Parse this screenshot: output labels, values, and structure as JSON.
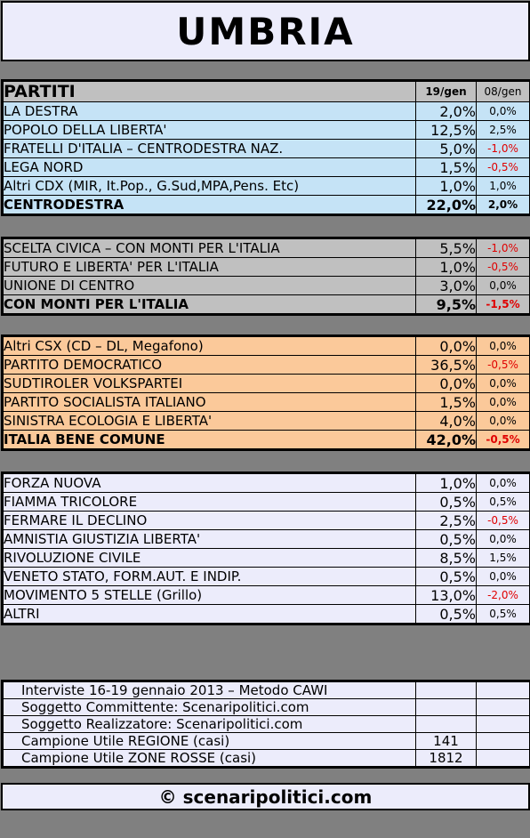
{
  "title": "UMBRIA",
  "header": {
    "col_party": "PARTITI",
    "col_current": "19/gen",
    "col_previous": "08/gen"
  },
  "groups": [
    {
      "rows": [
        {
          "name": "LA DESTRA",
          "value": "2,0%",
          "change": "0,0%"
        },
        {
          "name": "POPOLO DELLA LIBERTA'",
          "value": "12,5%",
          "change": "2,5%"
        },
        {
          "name": "FRATELLI D'ITALIA – CENTRODESTRA NAZ.",
          "value": "5,0%",
          "change": "-1,0%"
        },
        {
          "name": "LEGA NORD",
          "value": "1,5%",
          "change": "-0,5%"
        },
        {
          "name": "Altri CDX (MIR, It.Pop., G.Sud,MPA,Pens. Etc)",
          "value": "1,0%",
          "change": "1,0%"
        }
      ],
      "total": {
        "name": "CENTRODESTRA",
        "value": "22,0%",
        "change": "2,0%"
      }
    },
    {
      "rows": [
        {
          "name": "SCELTA CIVICA – CON MONTI PER L'ITALIA",
          "value": "5,5%",
          "change": "-1,0%"
        },
        {
          "name": "FUTURO E LIBERTA' PER L'ITALIA",
          "value": "1,0%",
          "change": "-0,5%"
        },
        {
          "name": "UNIONE DI CENTRO",
          "value": "3,0%",
          "change": "0,0%"
        }
      ],
      "total": {
        "name": "CON MONTI PER L'ITALIA",
        "value": "9,5%",
        "change": "-1,5%"
      }
    },
    {
      "rows": [
        {
          "name": "Altri CSX (CD – DL, Megafono)",
          "value": "0,0%",
          "change": "0,0%"
        },
        {
          "name": "PARTITO DEMOCRATICO",
          "value": "36,5%",
          "change": "-0,5%"
        },
        {
          "name": "SUDTIROLER VOLKSPARTEI",
          "value": "0,0%",
          "change": "0,0%"
        },
        {
          "name": "PARTITO SOCIALISTA ITALIANO",
          "value": "1,5%",
          "change": "0,0%"
        },
        {
          "name": "SINISTRA ECOLOGIA E LIBERTA'",
          "value": "4,0%",
          "change": "0,0%"
        }
      ],
      "total": {
        "name": "ITALIA BENE COMUNE",
        "value": "42,0%",
        "change": "-0,5%"
      }
    },
    {
      "rows": [
        {
          "name": "FORZA NUOVA",
          "value": "1,0%",
          "change": "0,0%"
        },
        {
          "name": "FIAMMA TRICOLORE",
          "value": "0,5%",
          "change": "0,5%"
        },
        {
          "name": "FERMARE IL DECLINO",
          "value": "2,5%",
          "change": "-0,5%"
        },
        {
          "name": "AMNISTIA GIUSTIZIA LIBERTA'",
          "value": "0,5%",
          "change": "0,0%"
        },
        {
          "name": "RIVOLUZIONE CIVILE",
          "value": "8,5%",
          "change": "1,5%"
        },
        {
          "name": "VENETO STATO, FORM.AUT. E INDIP.",
          "value": "0,5%",
          "change": "0,0%"
        },
        {
          "name": "MOVIMENTO 5 STELLE (Grillo)",
          "value": "13,0%",
          "change": "-2,0%"
        },
        {
          "name": "ALTRI",
          "value": "0,5%",
          "change": "0,5%"
        }
      ]
    }
  ],
  "footer": [
    {
      "label": "Interviste 16-19 gennaio 2013 – Metodo CAWI",
      "value": ""
    },
    {
      "label": "Soggetto Committente: Scenaripolitici.com",
      "value": ""
    },
    {
      "label": "Soggetto Realizzatore: Scenaripolitici.com",
      "value": ""
    },
    {
      "label": "Campione Utile REGIONE (casi)",
      "value": "141"
    },
    {
      "label": "Campione Utile ZONE ROSSE (casi)",
      "value": "1812"
    }
  ],
  "copyright": "© scenaripolitici.com",
  "colors": {
    "background": "#808080",
    "centrodestra": "#c5e3f6",
    "monti": "#c0c0c0",
    "csx": "#fbc99a",
    "others": "#ececfb",
    "negative": "#e00000"
  }
}
